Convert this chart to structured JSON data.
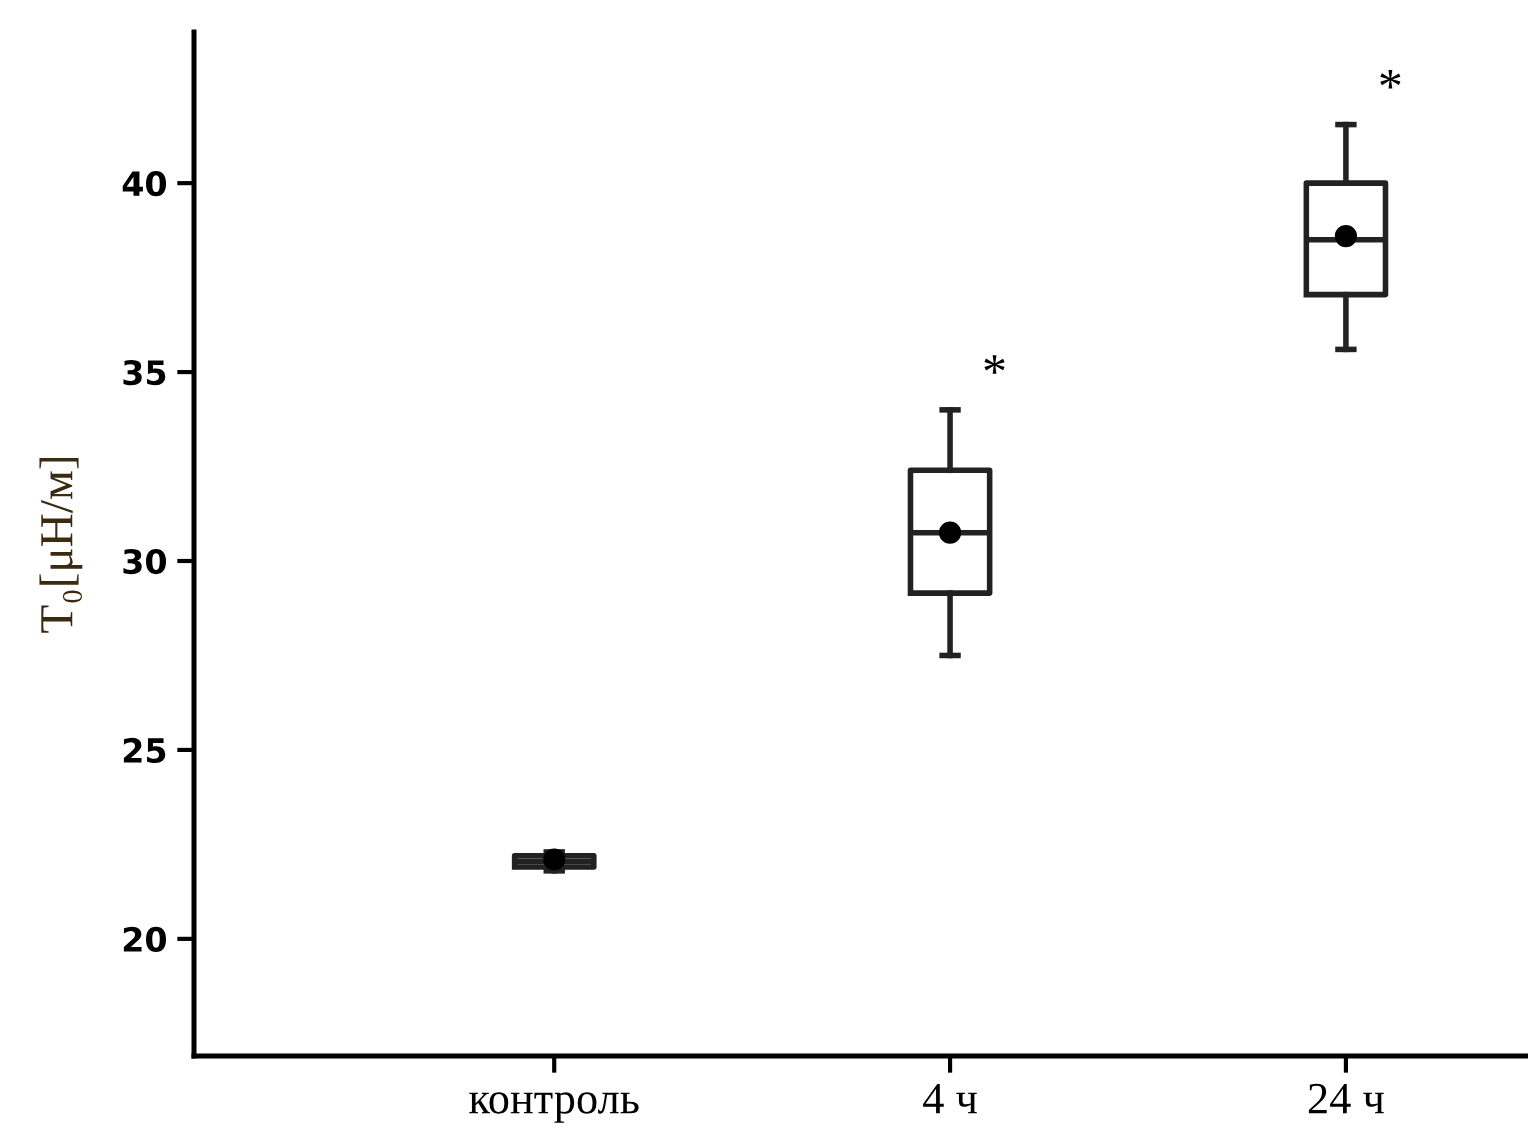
{
  "chart_data": {
    "type": "box",
    "ylabel": "T₀[μН/м]",
    "categories": [
      "контроль",
      "4 ч",
      "24 ч"
    ],
    "boxes": [
      {
        "low": 21.8,
        "q1": 21.9,
        "median": 22.05,
        "q3": 22.2,
        "high": 22.3,
        "mean": 22.1
      },
      {
        "low": 27.5,
        "q1": 29.15,
        "median": 30.75,
        "q3": 32.4,
        "high": 34.0,
        "mean": 30.75
      },
      {
        "low": 35.6,
        "q1": 37.05,
        "median": 38.5,
        "q3": 40.0,
        "high": 41.55,
        "mean": 38.6
      }
    ],
    "ylim": [
      16.9,
      44.0
    ],
    "yticks": [
      20,
      25,
      30,
      35,
      40
    ],
    "annotations": [
      "*",
      "*"
    ],
    "grid": false
  }
}
